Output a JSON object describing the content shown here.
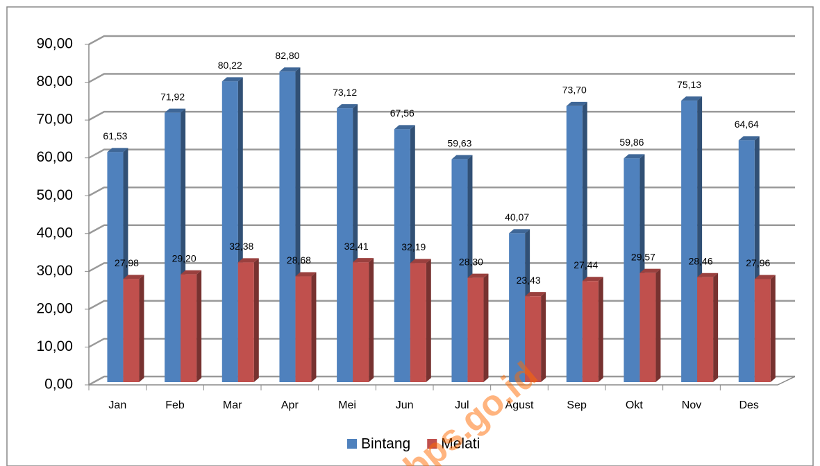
{
  "chart_data": {
    "type": "bar",
    "categories": [
      "Jan",
      "Feb",
      "Mar",
      "Apr",
      "Mei",
      "Jun",
      "Jul",
      "Agust",
      "Sep",
      "Okt",
      "Nov",
      "Des"
    ],
    "series": [
      {
        "name": "Bintang",
        "color": "#4f81bd",
        "values": [
          61.53,
          71.92,
          80.22,
          82.8,
          73.12,
          67.56,
          59.63,
          40.07,
          73.7,
          59.86,
          75.13,
          64.64
        ],
        "value_labels": [
          "61,53",
          "71,92",
          "80,22",
          "82,80",
          "73,12",
          "67,56",
          "59,63",
          "40,07",
          "73,70",
          "59,86",
          "75,13",
          "64,64"
        ]
      },
      {
        "name": "Melati",
        "color": "#c0504d",
        "values": [
          27.98,
          29.2,
          32.38,
          28.68,
          32.41,
          32.19,
          28.3,
          23.43,
          27.44,
          29.57,
          28.46,
          27.96
        ],
        "value_labels": [
          "27,98",
          "29,20",
          "32,38",
          "28,68",
          "32,41",
          "32,19",
          "28,30",
          "23,43",
          "27,44",
          "29,57",
          "28,46",
          "27,96"
        ]
      }
    ],
    "ylim": [
      0,
      90
    ],
    "yticks": [
      {
        "value": 0,
        "label": "0,00"
      },
      {
        "value": 10,
        "label": "10,00"
      },
      {
        "value": 20,
        "label": "20,00"
      },
      {
        "value": 30,
        "label": "30,00"
      },
      {
        "value": 40,
        "label": "40,00"
      },
      {
        "value": 50,
        "label": "50,00"
      },
      {
        "value": 60,
        "label": "60,00"
      },
      {
        "value": 70,
        "label": "70,00"
      },
      {
        "value": 80,
        "label": "80,00"
      },
      {
        "value": 90,
        "label": "90,00"
      }
    ],
    "grid": true,
    "legend": "bottom",
    "watermark": "bps.go.id"
  }
}
